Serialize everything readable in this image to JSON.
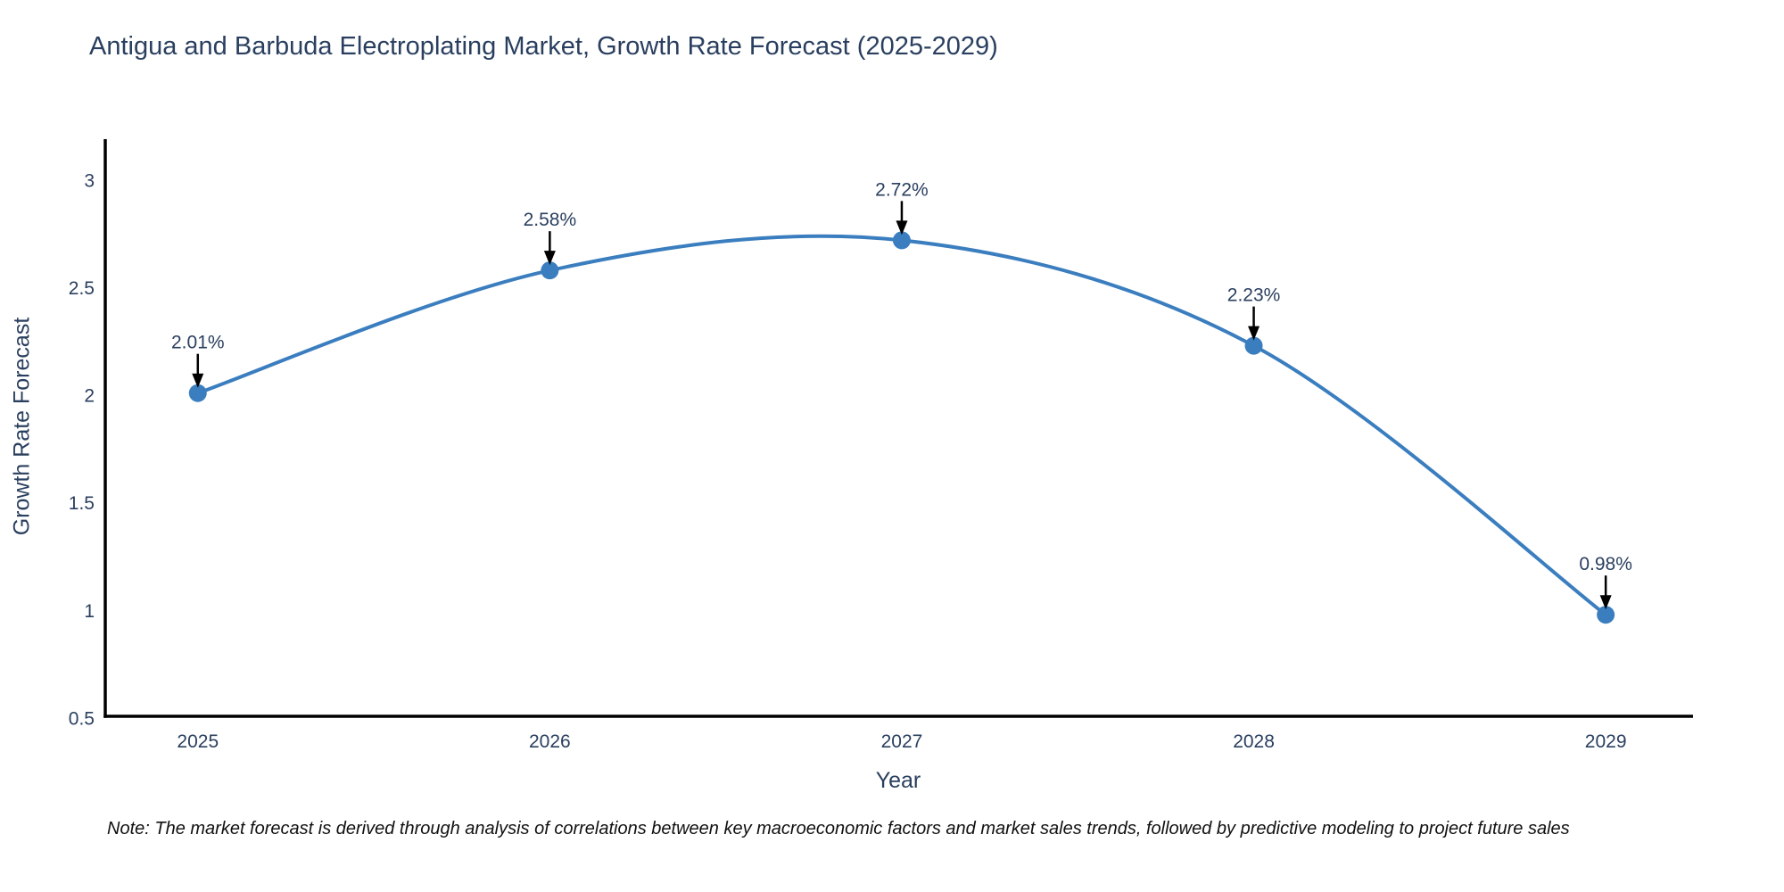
{
  "title": "Antigua and Barbuda Electroplating Market, Growth Rate Forecast (2025-2029)",
  "note": "Note: The market forecast is derived through analysis of correlations between key macroeconomic factors and market sales trends, followed by predictive modeling to project future sales",
  "chart_data": {
    "type": "line",
    "title": "Antigua and Barbuda Electroplating Market, Growth Rate Forecast (2025-2029)",
    "xlabel": "Year",
    "ylabel": "Growth Rate Forecast",
    "x": [
      2025,
      2026,
      2027,
      2028,
      2029
    ],
    "values": [
      2.01,
      2.58,
      2.72,
      2.23,
      0.98
    ],
    "point_labels": [
      "2.01%",
      "2.58%",
      "2.72%",
      "2.23%",
      "0.98%"
    ],
    "xticks": [
      2025,
      2026,
      2027,
      2028,
      2029
    ],
    "yticks": [
      0.5,
      1,
      1.5,
      2,
      2.5,
      3
    ],
    "xlim": [
      2024.737,
      2029.248
    ],
    "ylim": [
      0.5,
      3.19
    ],
    "line_shape": "spline",
    "grid": false,
    "legend_position": "none",
    "line_color": "#3b7ebf",
    "marker_color": "#3b7ebf",
    "axis_color": "#000000",
    "tick_color": "#2a3f5f",
    "annotation_color": "#2a3f5f",
    "arrow_color": "#000000"
  }
}
